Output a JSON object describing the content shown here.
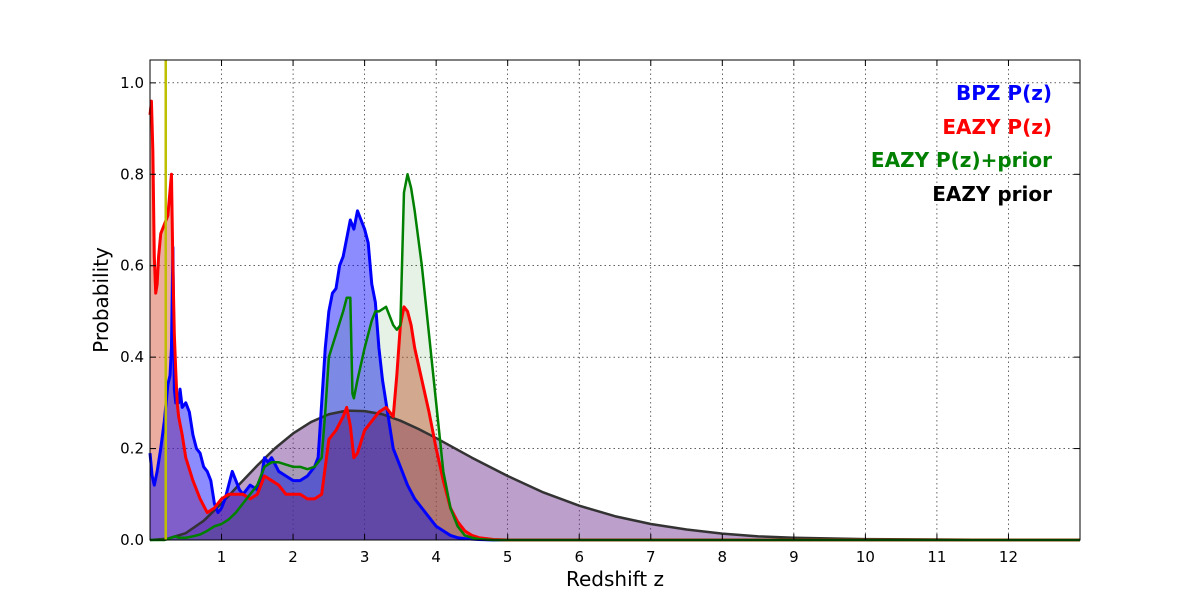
{
  "chart_data": {
    "type": "area",
    "title": "",
    "xlabel": "Redshift z",
    "ylabel": "Probability",
    "xlim": [
      0,
      13
    ],
    "ylim": [
      0,
      1.05
    ],
    "grid": true,
    "legend_position": "top-right",
    "x_ticks": [
      1,
      2,
      3,
      4,
      5,
      6,
      7,
      8,
      9,
      10,
      11,
      12
    ],
    "x_tick_labels": [
      "1",
      "2",
      "3",
      "4",
      "5",
      "6",
      "7",
      "8",
      "9",
      "10",
      "11",
      "12"
    ],
    "y_ticks": [
      0.0,
      0.2,
      0.4,
      0.6,
      0.8,
      1.0
    ],
    "y_tick_labels": [
      "0.0",
      "0.2",
      "0.4",
      "0.6",
      "0.8",
      "1.0"
    ],
    "vertical_line": {
      "x": 0.22,
      "color": "#bfbf00"
    },
    "legend": [
      {
        "name": "BPZ P(z)",
        "color": "#0000ff"
      },
      {
        "name": "EAZY P(z)",
        "color": "#ff0000"
      },
      {
        "name": "EAZY P(z)+prior",
        "color": "#008000"
      },
      {
        "name": "EAZY prior",
        "color": "#000000"
      }
    ],
    "series": [
      {
        "name": "BPZ P(z)",
        "color": "#0000ff",
        "fill": "#0000ff",
        "fill_opacity": 0.45,
        "x": [
          0.0,
          0.03,
          0.06,
          0.1,
          0.15,
          0.2,
          0.25,
          0.28,
          0.3,
          0.32,
          0.34,
          0.36,
          0.38,
          0.4,
          0.42,
          0.45,
          0.5,
          0.55,
          0.6,
          0.65,
          0.7,
          0.75,
          0.8,
          0.85,
          0.9,
          0.95,
          1.0,
          1.05,
          1.1,
          1.15,
          1.2,
          1.25,
          1.3,
          1.4,
          1.5,
          1.55,
          1.6,
          1.65,
          1.7,
          1.8,
          1.9,
          2.0,
          2.1,
          2.2,
          2.3,
          2.35,
          2.4,
          2.45,
          2.5,
          2.55,
          2.6,
          2.65,
          2.7,
          2.75,
          2.8,
          2.85,
          2.9,
          2.95,
          3.0,
          3.05,
          3.1,
          3.15,
          3.2,
          3.25,
          3.3,
          3.35,
          3.4,
          3.5,
          3.6,
          3.7,
          3.8,
          3.9,
          4.0,
          4.1,
          4.2,
          4.3,
          4.4,
          4.5,
          4.6,
          4.8,
          5.0,
          13.0
        ],
        "y": [
          0.19,
          0.14,
          0.12,
          0.15,
          0.2,
          0.26,
          0.34,
          0.36,
          0.42,
          0.64,
          0.33,
          0.3,
          0.32,
          0.3,
          0.33,
          0.29,
          0.3,
          0.28,
          0.23,
          0.2,
          0.19,
          0.16,
          0.15,
          0.13,
          0.08,
          0.06,
          0.07,
          0.09,
          0.12,
          0.15,
          0.13,
          0.11,
          0.1,
          0.12,
          0.11,
          0.13,
          0.18,
          0.17,
          0.18,
          0.15,
          0.14,
          0.13,
          0.13,
          0.14,
          0.16,
          0.18,
          0.3,
          0.42,
          0.5,
          0.54,
          0.55,
          0.6,
          0.62,
          0.66,
          0.7,
          0.68,
          0.72,
          0.7,
          0.68,
          0.65,
          0.56,
          0.52,
          0.42,
          0.35,
          0.3,
          0.25,
          0.2,
          0.16,
          0.12,
          0.09,
          0.07,
          0.05,
          0.03,
          0.02,
          0.01,
          0.005,
          0.003,
          0.002,
          0.001,
          0.0,
          0.0,
          0.0
        ]
      },
      {
        "name": "EAZY P(z)",
        "color": "#ff0000",
        "fill": "#d04a2a",
        "fill_opacity": 0.45,
        "x": [
          0.0,
          0.02,
          0.04,
          0.06,
          0.08,
          0.1,
          0.12,
          0.15,
          0.2,
          0.25,
          0.3,
          0.32,
          0.34,
          0.36,
          0.38,
          0.4,
          0.45,
          0.5,
          0.6,
          0.7,
          0.8,
          0.9,
          1.0,
          1.1,
          1.2,
          1.3,
          1.4,
          1.5,
          1.6,
          1.7,
          1.8,
          1.9,
          2.0,
          2.1,
          2.2,
          2.3,
          2.4,
          2.5,
          2.6,
          2.7,
          2.75,
          2.8,
          2.85,
          2.9,
          3.0,
          3.1,
          3.2,
          3.3,
          3.35,
          3.4,
          3.45,
          3.5,
          3.55,
          3.6,
          3.65,
          3.7,
          3.8,
          3.9,
          4.0,
          4.1,
          4.2,
          4.3,
          4.4,
          4.5,
          4.6,
          4.8,
          5.0,
          13.0
        ],
        "y": [
          0.93,
          0.96,
          0.85,
          0.62,
          0.54,
          0.56,
          0.62,
          0.67,
          0.69,
          0.71,
          0.8,
          0.6,
          0.45,
          0.37,
          0.3,
          0.27,
          0.23,
          0.18,
          0.13,
          0.09,
          0.06,
          0.07,
          0.09,
          0.1,
          0.1,
          0.1,
          0.09,
          0.1,
          0.14,
          0.13,
          0.12,
          0.1,
          0.1,
          0.1,
          0.09,
          0.09,
          0.1,
          0.22,
          0.24,
          0.27,
          0.29,
          0.25,
          0.18,
          0.19,
          0.24,
          0.26,
          0.28,
          0.29,
          0.28,
          0.27,
          0.36,
          0.47,
          0.51,
          0.5,
          0.47,
          0.42,
          0.35,
          0.28,
          0.2,
          0.13,
          0.07,
          0.04,
          0.02,
          0.01,
          0.005,
          0.001,
          0.0,
          0.0
        ]
      },
      {
        "name": "EAZY P(z)+prior",
        "color": "#008000",
        "fill": "#008000",
        "fill_opacity": 0.1,
        "x": [
          0.0,
          0.2,
          0.25,
          0.3,
          0.35,
          0.4,
          0.5,
          0.6,
          0.7,
          0.8,
          0.9,
          1.0,
          1.1,
          1.2,
          1.3,
          1.4,
          1.5,
          1.6,
          1.7,
          1.8,
          1.9,
          2.0,
          2.1,
          2.2,
          2.3,
          2.4,
          2.45,
          2.5,
          2.6,
          2.7,
          2.75,
          2.8,
          2.83,
          2.85,
          2.9,
          3.0,
          3.1,
          3.15,
          3.2,
          3.3,
          3.4,
          3.45,
          3.5,
          3.55,
          3.6,
          3.65,
          3.7,
          3.8,
          3.9,
          4.0,
          4.1,
          4.2,
          4.3,
          4.4,
          4.5,
          4.6,
          4.8,
          5.0,
          13.0
        ],
        "y": [
          0.0,
          0.0,
          0.002,
          0.005,
          0.008,
          0.005,
          0.005,
          0.008,
          0.012,
          0.02,
          0.03,
          0.035,
          0.045,
          0.06,
          0.08,
          0.1,
          0.12,
          0.16,
          0.17,
          0.17,
          0.165,
          0.16,
          0.16,
          0.155,
          0.16,
          0.18,
          0.28,
          0.4,
          0.45,
          0.5,
          0.53,
          0.53,
          0.32,
          0.31,
          0.35,
          0.42,
          0.48,
          0.5,
          0.5,
          0.51,
          0.47,
          0.46,
          0.47,
          0.76,
          0.8,
          0.77,
          0.72,
          0.6,
          0.45,
          0.3,
          0.15,
          0.07,
          0.03,
          0.01,
          0.005,
          0.002,
          0.0,
          0.0,
          0.0
        ]
      },
      {
        "name": "EAZY prior",
        "color": "#333333",
        "fill": "#6a2a8a",
        "fill_opacity": 0.45,
        "x": [
          0.0,
          0.25,
          0.5,
          0.75,
          1.0,
          1.25,
          1.5,
          1.75,
          2.0,
          2.25,
          2.5,
          2.75,
          3.0,
          3.25,
          3.5,
          3.75,
          4.0,
          4.5,
          5.0,
          5.5,
          6.0,
          6.5,
          7.0,
          7.5,
          8.0,
          8.5,
          9.0,
          10.0,
          11.0,
          12.0,
          13.0
        ],
        "y": [
          0.0,
          0.003,
          0.015,
          0.042,
          0.08,
          0.122,
          0.163,
          0.201,
          0.233,
          0.258,
          0.275,
          0.283,
          0.282,
          0.275,
          0.261,
          0.243,
          0.223,
          0.18,
          0.14,
          0.104,
          0.075,
          0.052,
          0.035,
          0.023,
          0.014,
          0.008,
          0.005,
          0.002,
          0.001,
          0.0,
          0.0
        ]
      }
    ]
  }
}
